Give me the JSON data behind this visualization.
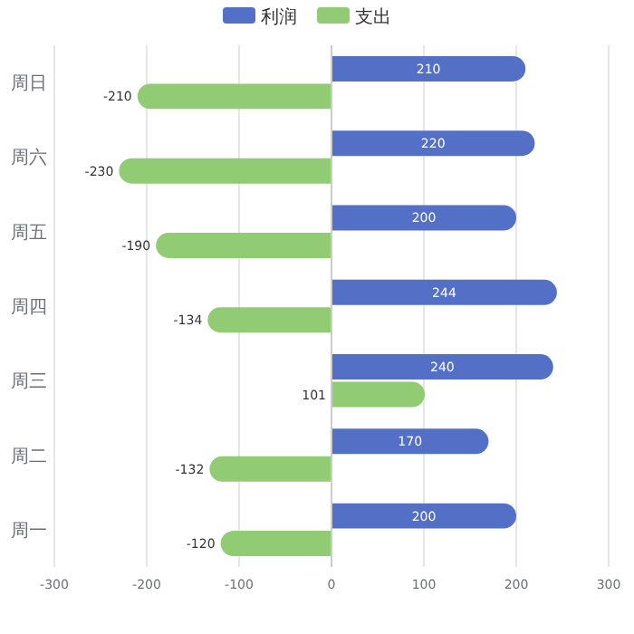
{
  "chart_data": {
    "type": "bar",
    "orientation": "horizontal",
    "categories": [
      "周日",
      "周六",
      "周五",
      "周四",
      "周三",
      "周二",
      "周一"
    ],
    "series": [
      {
        "name": "利润",
        "color": "#5470c6",
        "values": [
          210,
          220,
          200,
          244,
          240,
          170,
          200
        ]
      },
      {
        "name": "支出",
        "color": "#91cc75",
        "values": [
          -210,
          -230,
          -190,
          -134,
          101,
          -132,
          -120
        ]
      }
    ],
    "xlim": [
      -300,
      300
    ],
    "xticks": [
      -300,
      -200,
      -100,
      0,
      100,
      200,
      300
    ],
    "grid": "x",
    "legend": "top",
    "data_labels": true
  }
}
